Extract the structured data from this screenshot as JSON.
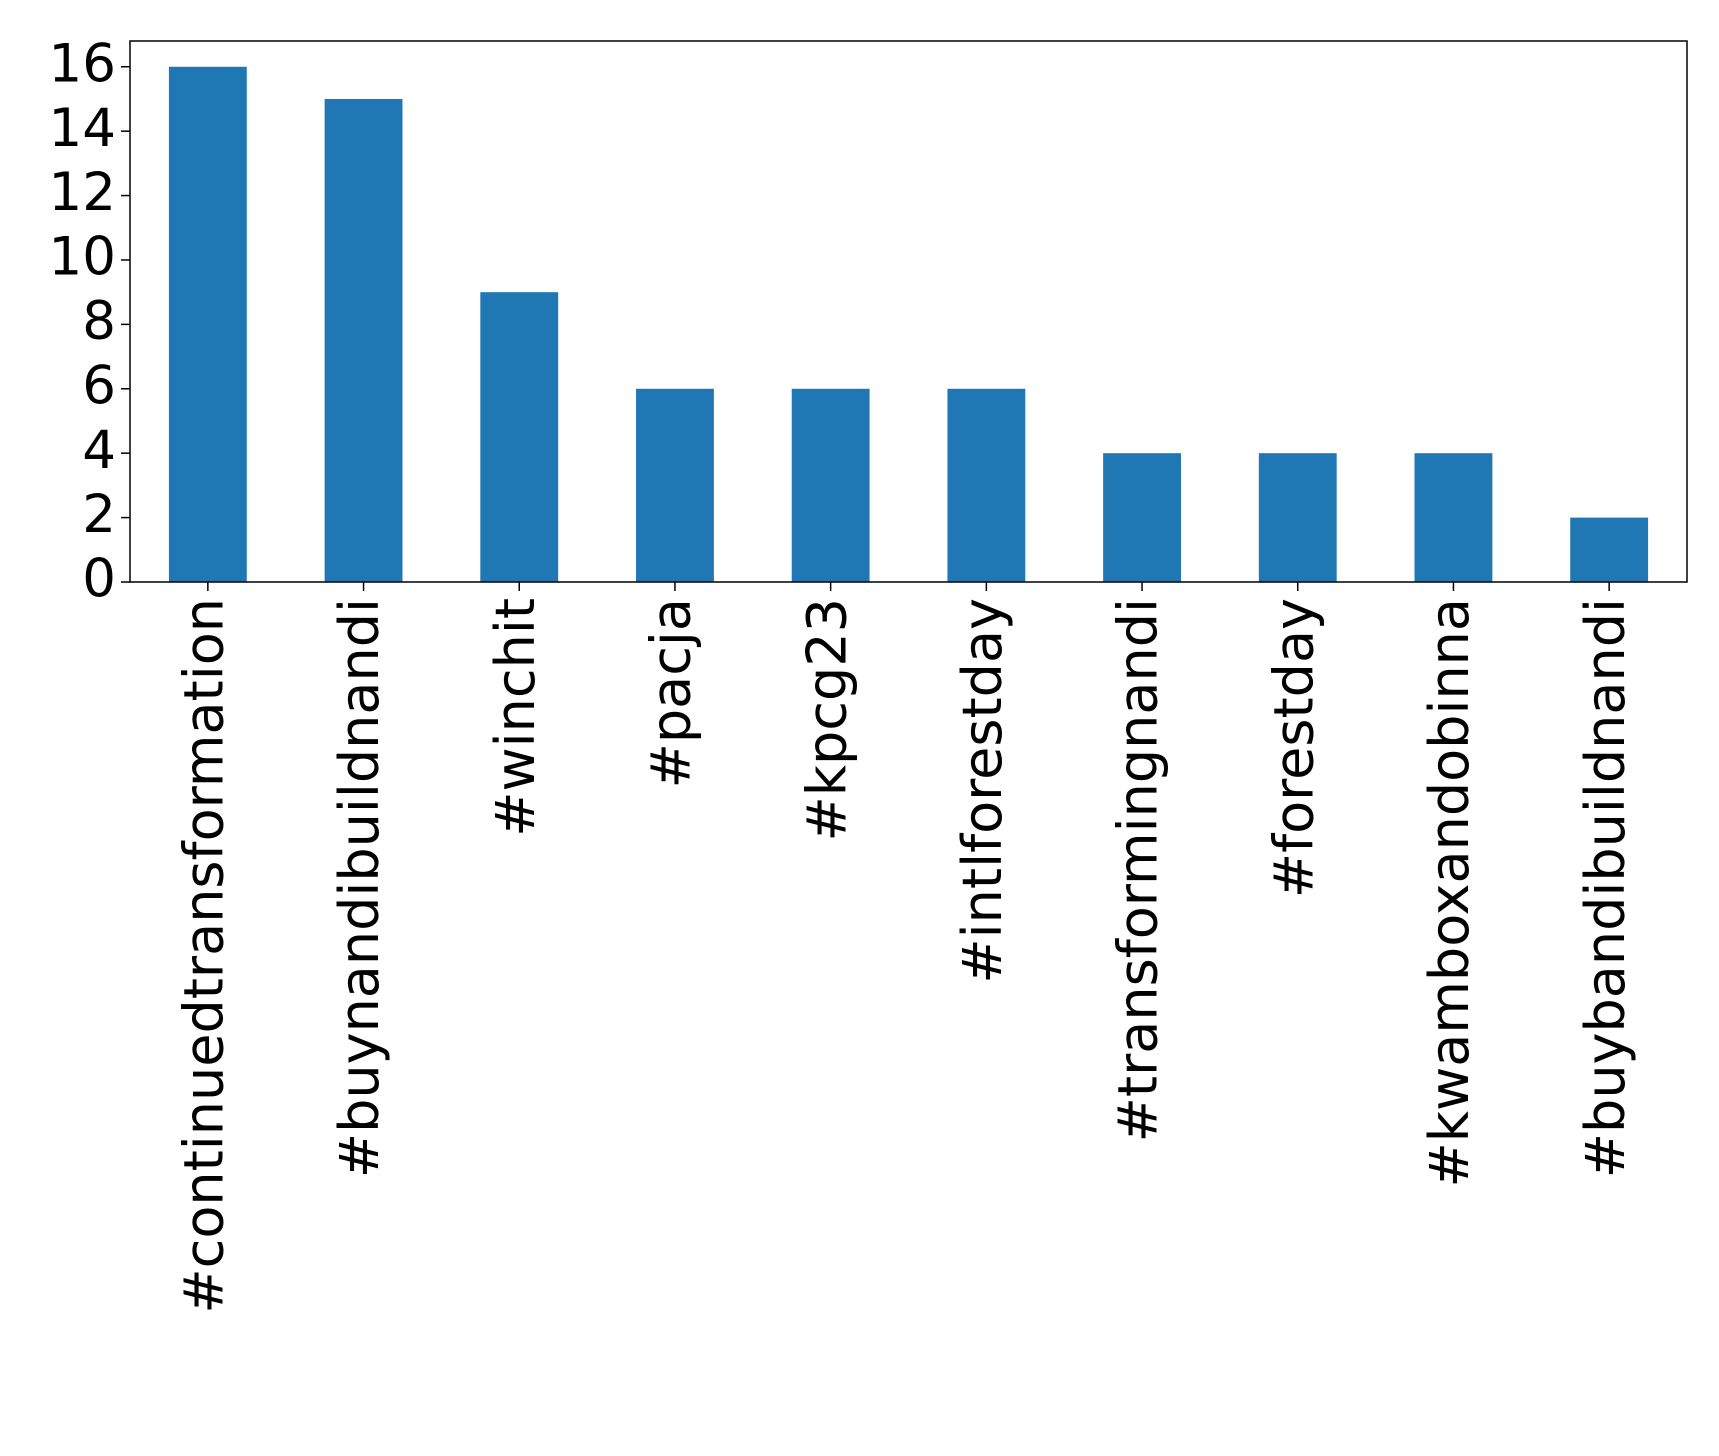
{
  "chart_data": {
    "type": "bar",
    "categories": [
      "#continuedtransformation",
      "#buynandibuildnandi",
      "#winchit",
      "#pacja",
      "#kpcg23",
      "#intlforestday",
      "#transformingnandi",
      "#forestday",
      "#kwamboxandobinna",
      "#buybandibuildnandi"
    ],
    "values": [
      16,
      15,
      9,
      6,
      6,
      6,
      4,
      4,
      4,
      2
    ],
    "color": "#1f77b4",
    "ylim": [
      0,
      16.8
    ],
    "yticks": [
      0,
      2,
      4,
      6,
      8,
      10,
      12,
      14,
      16
    ],
    "grid": false
  }
}
